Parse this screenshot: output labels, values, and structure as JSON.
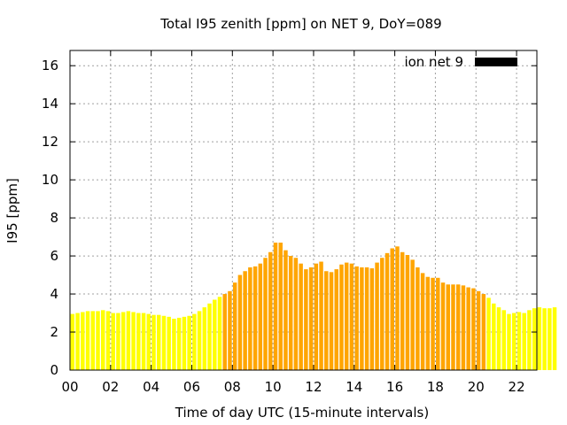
{
  "chart_data": {
    "type": "bar",
    "title": "Total I95 zenith [ppm] on NET 9, DoY=089",
    "xlabel": "Time of day UTC (15-minute intervals)",
    "ylabel": "I95 [ppm]",
    "xlim": [
      0,
      23
    ],
    "ylim": [
      0,
      16.8
    ],
    "x_ticks": [
      "00",
      "02",
      "04",
      "06",
      "08",
      "10",
      "12",
      "14",
      "16",
      "18",
      "20",
      "22"
    ],
    "y_ticks": [
      "0",
      "2",
      "4",
      "6",
      "8",
      "10",
      "12",
      "14",
      "16"
    ],
    "grid": true,
    "legend": {
      "label": "ion net 9",
      "color": "#000000",
      "placement": "top-right"
    },
    "colors": {
      "low": "#ffff00",
      "high": "#ffa500"
    },
    "threshold": 4.0,
    "bar_interval_hours": 0.25,
    "values": [
      2.95,
      3.0,
      3.05,
      3.1,
      3.1,
      3.1,
      3.15,
      3.1,
      3.0,
      3.0,
      3.05,
      3.1,
      3.05,
      3.0,
      3.0,
      2.95,
      2.9,
      2.9,
      2.85,
      2.8,
      2.7,
      2.75,
      2.8,
      2.85,
      2.95,
      3.1,
      3.3,
      3.5,
      3.7,
      3.85,
      4.0,
      4.15,
      4.6,
      5.0,
      5.2,
      5.4,
      5.45,
      5.6,
      5.9,
      6.2,
      6.7,
      6.7,
      6.3,
      6.0,
      5.9,
      5.6,
      5.3,
      5.4,
      5.6,
      5.7,
      5.2,
      5.15,
      5.3,
      5.55,
      5.65,
      5.6,
      5.45,
      5.4,
      5.4,
      5.35,
      5.65,
      5.9,
      6.15,
      6.4,
      6.5,
      6.2,
      6.05,
      5.8,
      5.4,
      5.1,
      4.9,
      4.85,
      4.85,
      4.6,
      4.5,
      4.5,
      4.5,
      4.45,
      4.35,
      4.3,
      4.15,
      4.0,
      3.8,
      3.5,
      3.3,
      3.15,
      2.95,
      3.0,
      3.05,
      3.0,
      3.15,
      3.25,
      3.3,
      3.25,
      3.25,
      3.3
    ]
  }
}
